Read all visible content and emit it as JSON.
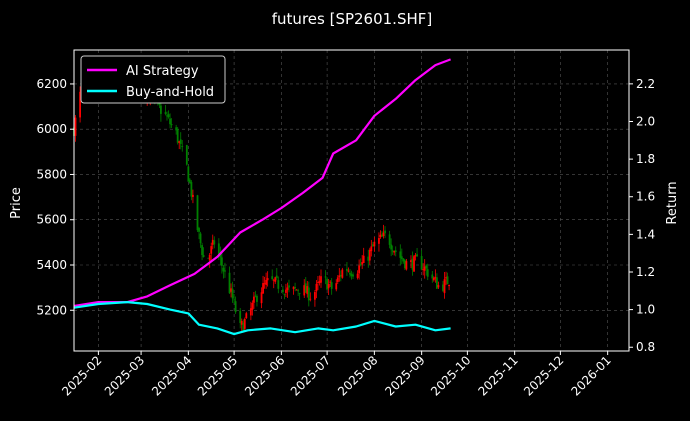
{
  "chart_data": {
    "type": "line",
    "title": "futures [SP2601.SHF]",
    "xlabel": "",
    "ylabel": "Price",
    "y2label": "Return",
    "x_ticks": [
      "2025-02",
      "2025-03",
      "2025-04",
      "2025-05",
      "2025-06",
      "2025-07",
      "2025-08",
      "2025-09",
      "2025-10",
      "2025-11",
      "2025-12",
      "2026-01"
    ],
    "xlim": [
      "2025-01-16",
      "2026-01-15"
    ],
    "y_ticks": [
      5200,
      5400,
      5600,
      5800,
      6000,
      6200
    ],
    "ylim": [
      5020,
      6350
    ],
    "y2_ticks": [
      0.8,
      1.0,
      1.2,
      1.4,
      1.6,
      1.8,
      2.0,
      2.2
    ],
    "y2lim": [
      0.78,
      2.38
    ],
    "grid": true,
    "legend_position": "top-left",
    "colors": {
      "up": "#ff0000",
      "down": "#008000",
      "background": "#000000"
    },
    "candlestick": {
      "axis": "left",
      "points": [
        [
          "2025-01-16",
          6000
        ],
        [
          "2025-01-20",
          6150
        ],
        [
          "2025-01-24",
          6130
        ],
        [
          "2025-02-03",
          6190
        ],
        [
          "2025-02-10",
          6200
        ],
        [
          "2025-02-18",
          6170
        ],
        [
          "2025-02-25",
          6210
        ],
        [
          "2025-03-03",
          6180
        ],
        [
          "2025-03-10",
          6120
        ],
        [
          "2025-03-17",
          6060
        ],
        [
          "2025-03-24",
          5980
        ],
        [
          "2025-03-31",
          5830
        ],
        [
          "2025-04-03",
          5720
        ],
        [
          "2025-04-07",
          5560
        ],
        [
          "2025-04-12",
          5400
        ],
        [
          "2025-04-18",
          5500
        ],
        [
          "2025-04-24",
          5380
        ],
        [
          "2025-04-30",
          5250
        ],
        [
          "2025-05-05",
          5120
        ],
        [
          "2025-05-10",
          5170
        ],
        [
          "2025-05-17",
          5280
        ],
        [
          "2025-05-24",
          5330
        ],
        [
          "2025-05-31",
          5310
        ],
        [
          "2025-06-07",
          5280
        ],
        [
          "2025-06-14",
          5300
        ],
        [
          "2025-06-21",
          5260
        ],
        [
          "2025-06-28",
          5340
        ],
        [
          "2025-07-05",
          5290
        ],
        [
          "2025-07-12",
          5390
        ],
        [
          "2025-07-19",
          5370
        ],
        [
          "2025-07-26",
          5420
        ],
        [
          "2025-08-02",
          5500
        ],
        [
          "2025-08-09",
          5530
        ],
        [
          "2025-08-16",
          5450
        ],
        [
          "2025-08-23",
          5400
        ],
        [
          "2025-08-30",
          5420
        ],
        [
          "2025-09-06",
          5360
        ],
        [
          "2025-09-13",
          5300
        ],
        [
          "2025-09-20",
          5340
        ]
      ]
    },
    "series": [
      {
        "name": "AI Strategy",
        "color": "#ff00ff",
        "axis": "right",
        "points": [
          [
            "2025-01-16",
            1.02
          ],
          [
            "2025-02-01",
            1.04
          ],
          [
            "2025-02-20",
            1.04
          ],
          [
            "2025-03-05",
            1.07
          ],
          [
            "2025-03-20",
            1.13
          ],
          [
            "2025-04-05",
            1.19
          ],
          [
            "2025-04-20",
            1.28
          ],
          [
            "2025-05-05",
            1.41
          ],
          [
            "2025-05-20",
            1.48
          ],
          [
            "2025-06-01",
            1.54
          ],
          [
            "2025-06-15",
            1.62
          ],
          [
            "2025-06-28",
            1.7
          ],
          [
            "2025-07-05",
            1.83
          ],
          [
            "2025-07-20",
            1.9
          ],
          [
            "2025-08-01",
            2.03
          ],
          [
            "2025-08-15",
            2.12
          ],
          [
            "2025-08-28",
            2.22
          ],
          [
            "2025-09-10",
            2.3
          ],
          [
            "2025-09-20",
            2.33
          ]
        ]
      },
      {
        "name": "Buy-and-Hold",
        "color": "#00ffff",
        "axis": "right",
        "points": [
          [
            "2025-01-16",
            1.01
          ],
          [
            "2025-02-01",
            1.03
          ],
          [
            "2025-02-20",
            1.04
          ],
          [
            "2025-03-05",
            1.03
          ],
          [
            "2025-03-20",
            1.0
          ],
          [
            "2025-04-01",
            0.98
          ],
          [
            "2025-04-08",
            0.92
          ],
          [
            "2025-04-20",
            0.9
          ],
          [
            "2025-05-01",
            0.87
          ],
          [
            "2025-05-10",
            0.89
          ],
          [
            "2025-05-25",
            0.9
          ],
          [
            "2025-06-10",
            0.88
          ],
          [
            "2025-06-25",
            0.9
          ],
          [
            "2025-07-05",
            0.89
          ],
          [
            "2025-07-20",
            0.91
          ],
          [
            "2025-08-01",
            0.94
          ],
          [
            "2025-08-15",
            0.91
          ],
          [
            "2025-08-28",
            0.92
          ],
          [
            "2025-09-10",
            0.89
          ],
          [
            "2025-09-20",
            0.9
          ]
        ]
      }
    ]
  }
}
